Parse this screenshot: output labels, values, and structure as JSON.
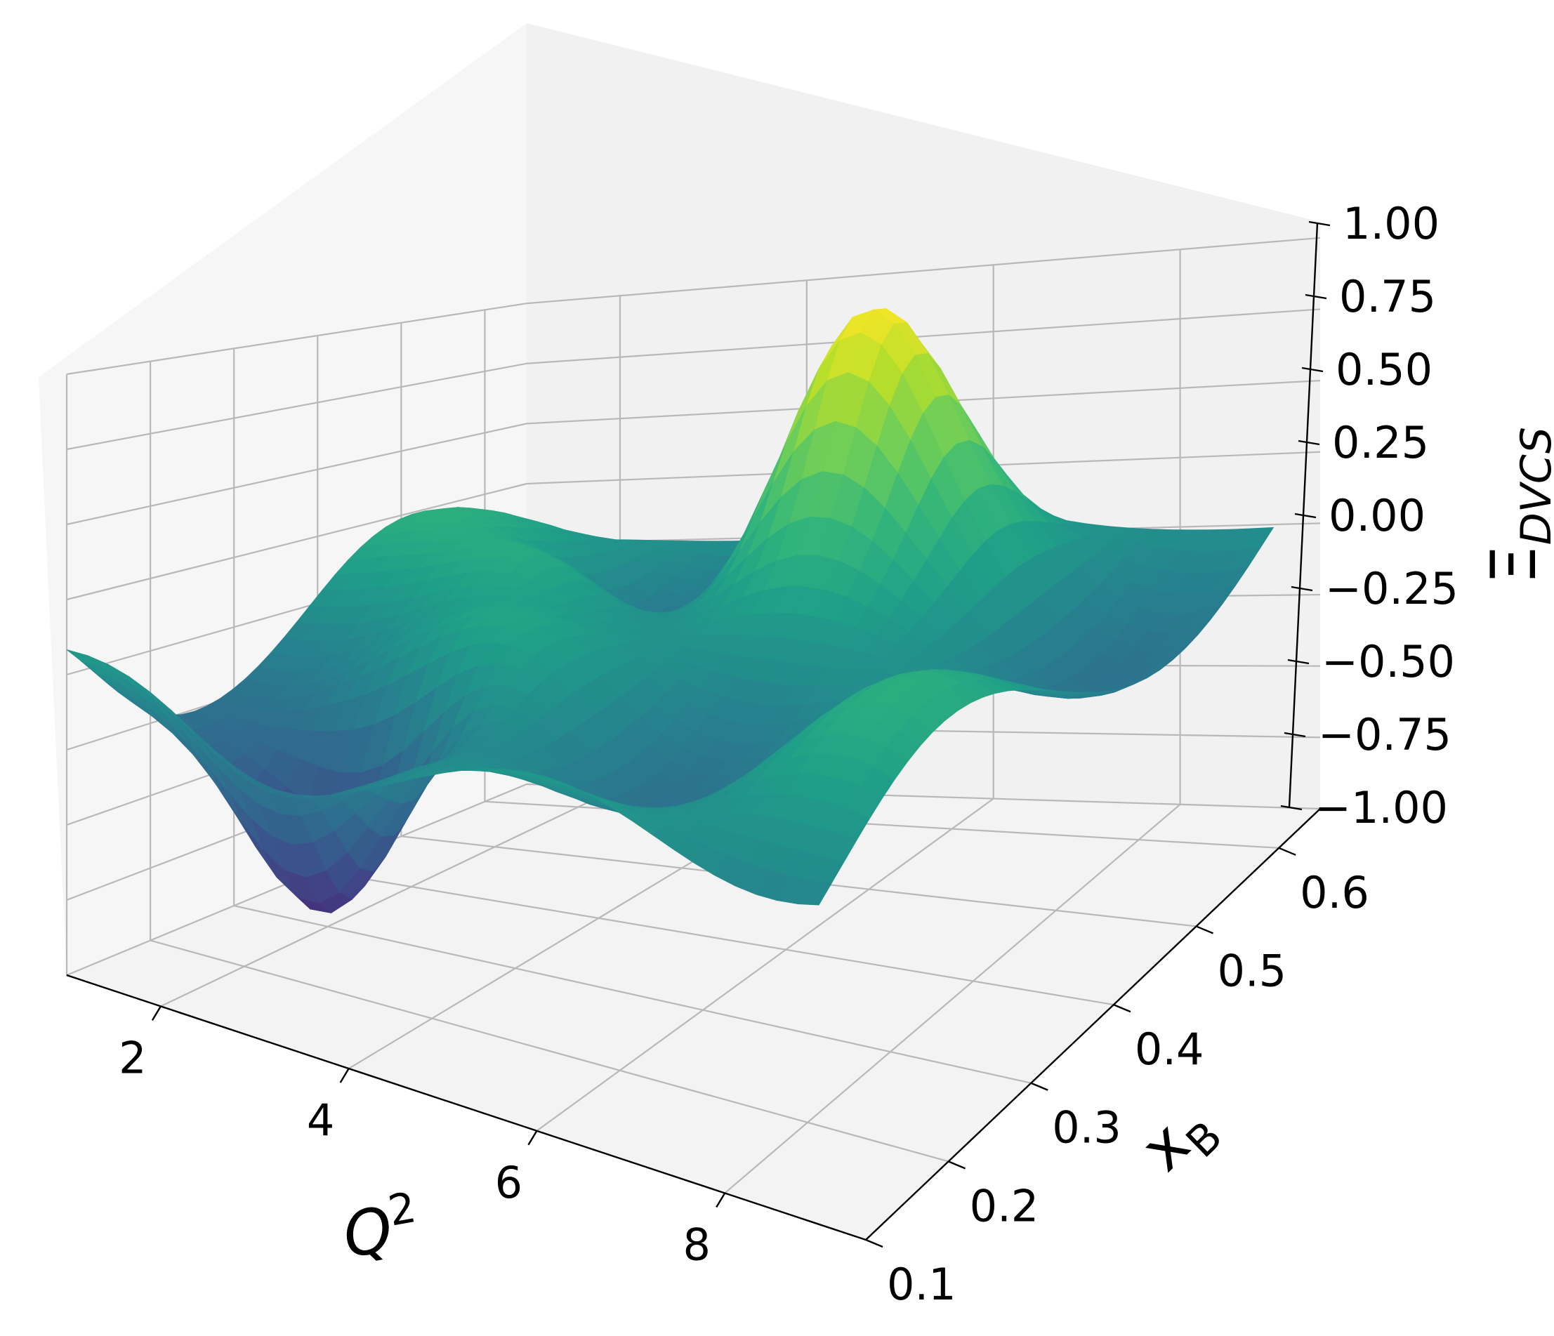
{
  "chart_data": {
    "type": "surface",
    "colormap": "viridis",
    "x": {
      "label": "Q",
      "label_sup": "2",
      "ticks": [
        "2",
        "4",
        "6",
        "8"
      ],
      "tick_values": [
        2,
        4,
        6,
        8
      ],
      "range": [
        1.0,
        9.5
      ]
    },
    "y": {
      "label": "x",
      "label_sub": "B",
      "ticks": [
        "0.1",
        "0.2",
        "0.3",
        "0.4",
        "0.5",
        "0.6"
      ],
      "tick_values": [
        0.1,
        0.2,
        0.3,
        0.4,
        0.5,
        0.6
      ],
      "range": [
        0.1,
        0.65
      ]
    },
    "z": {
      "label": "Ξ",
      "label_sub": "DVCS",
      "ticks": [
        "−1.00",
        "−0.75",
        "−0.50",
        "−0.25",
        "0.00",
        "0.25",
        "0.50",
        "0.75",
        "1.00"
      ],
      "tick_values": [
        -1.0,
        -0.75,
        -0.5,
        -0.25,
        0.0,
        0.25,
        0.5,
        0.75,
        1.0
      ],
      "range": [
        -1.0,
        1.0
      ]
    },
    "grid": true,
    "surface_features": [
      {
        "kind": "peak",
        "q2": 5.5,
        "xb": 0.55,
        "value": 0.8
      },
      {
        "kind": "trough",
        "q2": 3.0,
        "xb": 0.2,
        "value": -0.85
      },
      {
        "kind": "ridge",
        "q2": 3.0,
        "xb": 0.45,
        "value": 0.3
      }
    ]
  }
}
